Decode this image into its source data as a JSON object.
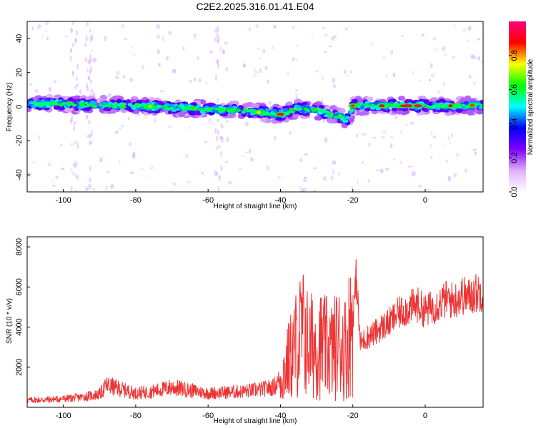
{
  "title": "C2E2.2025.316.01.41.E04",
  "chart_data": [
    {
      "type": "heatmap",
      "xlabel": "Height of straight line (km)",
      "ylabel": "Frequency (Hz)",
      "xlim": [
        -110,
        16
      ],
      "ylim": [
        -50,
        50
      ],
      "xticks": [
        "-100",
        "-80",
        "-60",
        "-40",
        "-20",
        "0"
      ],
      "yticks": [
        "-40",
        "-20",
        "0",
        "20",
        "40"
      ],
      "colorbar": {
        "label": "Normalized spectral amplitude",
        "range": [
          0,
          1
        ],
        "ticks": [
          "0.0",
          "0.2",
          "0.4",
          "0.6",
          "0.8"
        ],
        "colormap": [
          "#ffffff",
          "#e0b0ff",
          "#8000ff",
          "#0000ff",
          "#00ffff",
          "#00ff00",
          "#ffff00",
          "#ff0000",
          "#ff0080"
        ]
      },
      "ridge": [
        {
          "x": -110,
          "f": 1.5
        },
        {
          "x": -100,
          "f": 1.5
        },
        {
          "x": -90,
          "f": 1.0
        },
        {
          "x": -80,
          "f": 0.5
        },
        {
          "x": -70,
          "f": -0.5
        },
        {
          "x": -60,
          "f": -1.5
        },
        {
          "x": -50,
          "f": -2.5
        },
        {
          "x": -45,
          "f": -3.5
        },
        {
          "x": -40,
          "f": -4.5
        },
        {
          "x": -35,
          "f": -1.0
        },
        {
          "x": -30,
          "f": -2.0
        },
        {
          "x": -25,
          "f": -5.0
        },
        {
          "x": -21,
          "f": -8.0
        },
        {
          "x": -20,
          "f": 0.5
        },
        {
          "x": -10,
          "f": 0.5
        },
        {
          "x": 0,
          "f": 0.5
        },
        {
          "x": 10,
          "f": 0.5
        },
        {
          "x": 16,
          "f": 1.0
        }
      ]
    },
    {
      "type": "line",
      "xlabel": "Height of straight line (km)",
      "ylabel": "SNR (10 * v/v)",
      "xlim": [
        -110,
        16
      ],
      "ylim": [
        0,
        8500
      ],
      "xticks": [
        "-100",
        "-80",
        "-60",
        "-40",
        "-20",
        "0"
      ],
      "yticks": [
        "2000",
        "4000",
        "6000",
        "8000"
      ],
      "color": "#ee3333",
      "series": [
        {
          "x": [
            -110,
            -105,
            -100,
            -95,
            -90,
            -88,
            -85,
            -80,
            -75,
            -70,
            -65,
            -60,
            -55,
            -50,
            -45,
            -42,
            -40,
            -38,
            -36,
            -34,
            -32,
            -30,
            -28,
            -26,
            -24,
            -22,
            -20,
            -19,
            -18,
            -16,
            -14,
            -12,
            -10,
            -8,
            -6,
            -4,
            -2,
            0,
            2,
            4,
            6,
            8,
            10,
            12,
            14,
            16
          ],
          "y": [
            350,
            380,
            420,
            500,
            650,
            1100,
            950,
            700,
            800,
            1000,
            850,
            700,
            750,
            800,
            900,
            1000,
            1400,
            2200,
            3000,
            3800,
            3000,
            3200,
            3000,
            2800,
            3200,
            3000,
            4500,
            6500,
            3200,
            3500,
            3700,
            4000,
            4200,
            4600,
            4800,
            5000,
            5100,
            4800,
            5000,
            5200,
            5400,
            5300,
            5600,
            5500,
            5700,
            5800
          ]
        }
      ]
    }
  ]
}
